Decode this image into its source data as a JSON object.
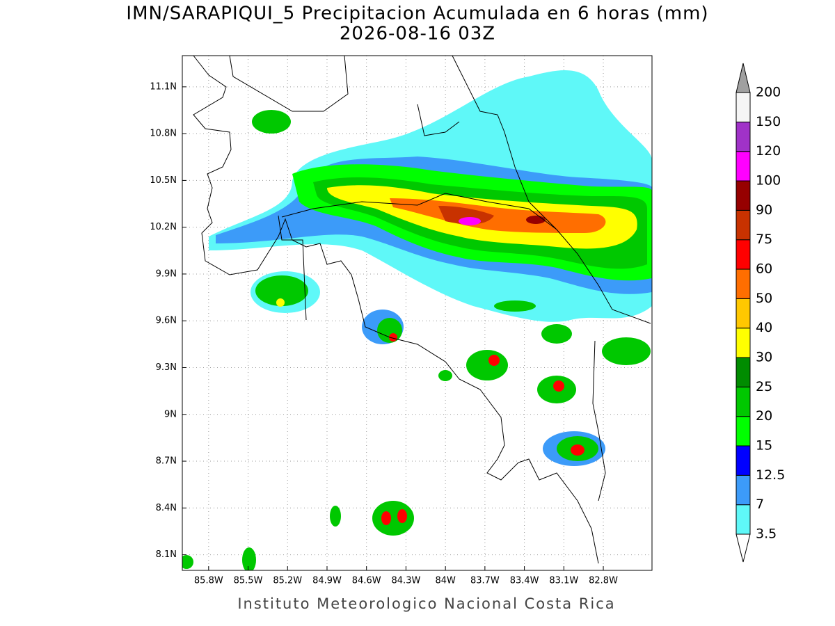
{
  "title": "IMN/SARAPIQUI_5 Precipitacion Acumulada en 6 horas (mm)",
  "subtitle": "2026-08-16 03Z",
  "footer": "Instituto Meteorologico Nacional Costa Rica",
  "map": {
    "lon_range": [
      -86.0,
      -82.43
    ],
    "lat_range": [
      8.0,
      11.3
    ],
    "grid": true,
    "lon_ticks": [
      {
        "value": -85.8,
        "label": "85.8W"
      },
      {
        "value": -85.5,
        "label": "85.5W"
      },
      {
        "value": -85.2,
        "label": "85.2W"
      },
      {
        "value": -84.9,
        "label": "84.9W"
      },
      {
        "value": -84.6,
        "label": "84.6W"
      },
      {
        "value": -84.3,
        "label": "84.3W"
      },
      {
        "value": -84.0,
        "label": "84W"
      },
      {
        "value": -83.7,
        "label": "83.7W"
      },
      {
        "value": -83.4,
        "label": "83.4W"
      },
      {
        "value": -83.1,
        "label": "83.1W"
      },
      {
        "value": -82.8,
        "label": "82.8W"
      }
    ],
    "lat_ticks": [
      {
        "value": 8.1,
        "label": "8.1N"
      },
      {
        "value": 8.4,
        "label": "8.4N"
      },
      {
        "value": 8.7,
        "label": "8.7N"
      },
      {
        "value": 9.0,
        "label": "9N"
      },
      {
        "value": 9.3,
        "label": "9.3N"
      },
      {
        "value": 9.6,
        "label": "9.6N"
      },
      {
        "value": 9.9,
        "label": "9.9N"
      },
      {
        "value": 10.2,
        "label": "10.2N"
      },
      {
        "value": 10.5,
        "label": "10.5N"
      },
      {
        "value": 10.8,
        "label": "10.8N"
      },
      {
        "value": 11.1,
        "label": "11.1N"
      }
    ]
  },
  "colorbar": {
    "levels": [
      3.5,
      7,
      12.5,
      15,
      20,
      25,
      30,
      40,
      50,
      60,
      75,
      90,
      100,
      120,
      150,
      200
    ],
    "colors": [
      "#ffffff",
      "#5ff8f8",
      "#3c9bf9",
      "#0000ff",
      "#00ff00",
      "#00c800",
      "#008c00",
      "#ffff00",
      "#ffc800",
      "#ff6e00",
      "#ff0000",
      "#c83200",
      "#960000",
      "#ff00ff",
      "#a032c8",
      "#f5f5f5",
      "#a0a0a0"
    ]
  }
}
